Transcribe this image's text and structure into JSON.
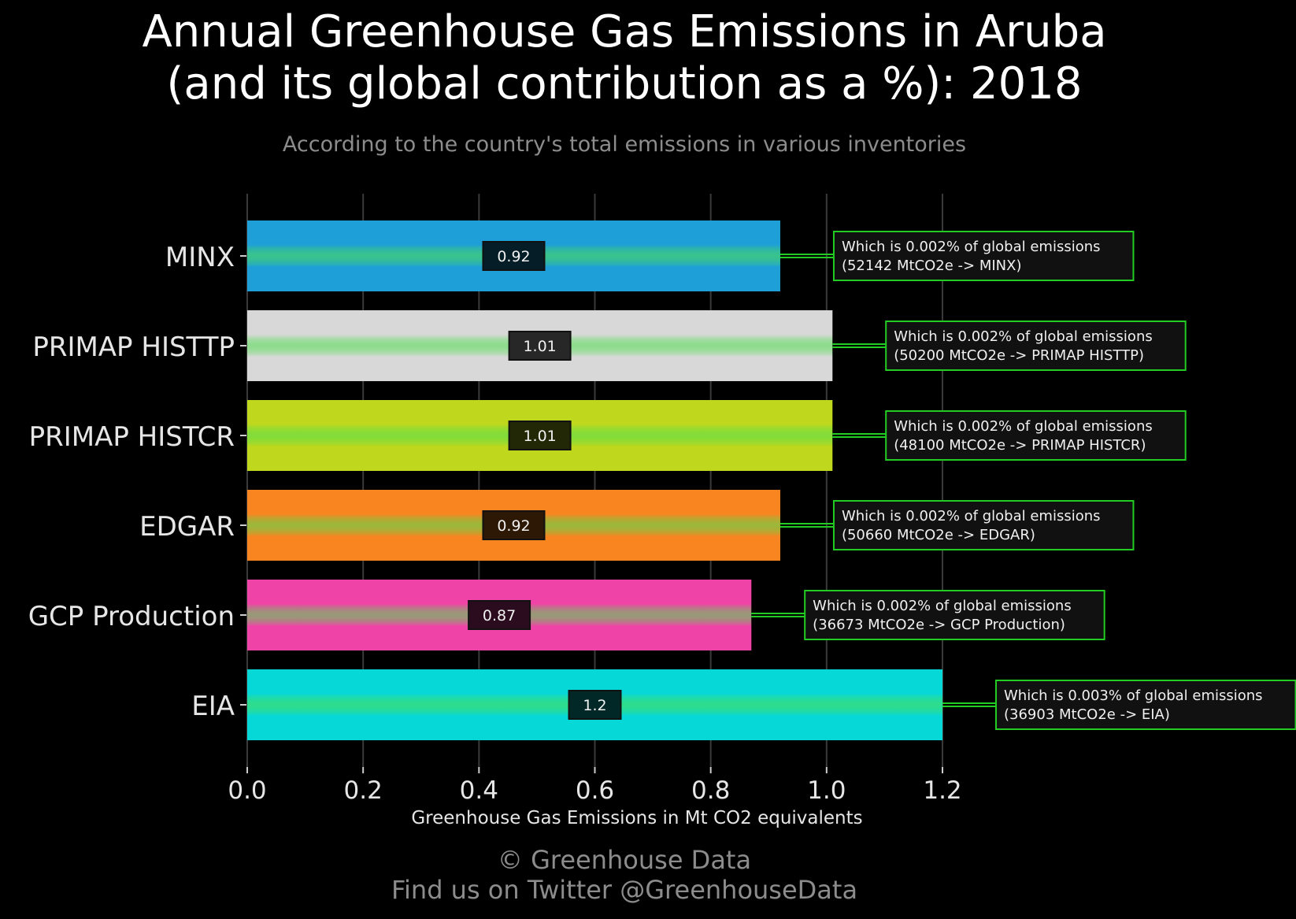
{
  "title_line1": "Annual Greenhouse Gas Emissions in Aruba",
  "title_line2": "(and its global contribution as a %): 2018",
  "subtitle": "According to the country's total emissions in various inventories",
  "footer_line1": "© Greenhouse Data",
  "footer_line2": "Find us on Twitter @GreenhouseData",
  "chart_data": {
    "type": "bar",
    "orientation": "horizontal",
    "categories": [
      "MINX",
      "PRIMAP HISTTP",
      "PRIMAP HISTCR",
      "EDGAR",
      "GCP Production",
      "EIA"
    ],
    "values": [
      0.92,
      1.01,
      1.01,
      0.92,
      0.87,
      1.2
    ],
    "value_labels": [
      "0.92",
      "1.01",
      "1.01",
      "0.92",
      "0.87",
      "1.2"
    ],
    "colors": [
      "#1e9fd8",
      "#d8d8d8",
      "#bfd81e",
      "#f98521",
      "#f043a7",
      "#06d8d8"
    ],
    "annotations": [
      {
        "line1": "Which is 0.002% of global emissions",
        "line2": "(52142 MtCO2e -> MINX)"
      },
      {
        "line1": "Which is 0.002% of global emissions",
        "line2": "(50200 MtCO2e -> PRIMAP HISTTP)"
      },
      {
        "line1": "Which is 0.002% of global emissions",
        "line2": "(48100 MtCO2e -> PRIMAP HISTCR)"
      },
      {
        "line1": "Which is 0.002% of global emissions",
        "line2": "(50660 MtCO2e -> EDGAR)"
      },
      {
        "line1": "Which is 0.002% of global emissions",
        "line2": "(36673 MtCO2e -> GCP Production)"
      },
      {
        "line1": "Which is 0.003% of global emissions",
        "line2": "(36903 MtCO2e -> EIA)"
      }
    ],
    "xlabel": "Greenhouse Gas Emissions in Mt CO2 equivalents",
    "ylabel": "",
    "xlim": [
      0,
      1.2
    ],
    "xticks": [
      "0.0",
      "0.2",
      "0.4",
      "0.6",
      "0.8",
      "1.0",
      "1.2"
    ],
    "grid": "vertical",
    "annotation_color": "#22cc22"
  }
}
